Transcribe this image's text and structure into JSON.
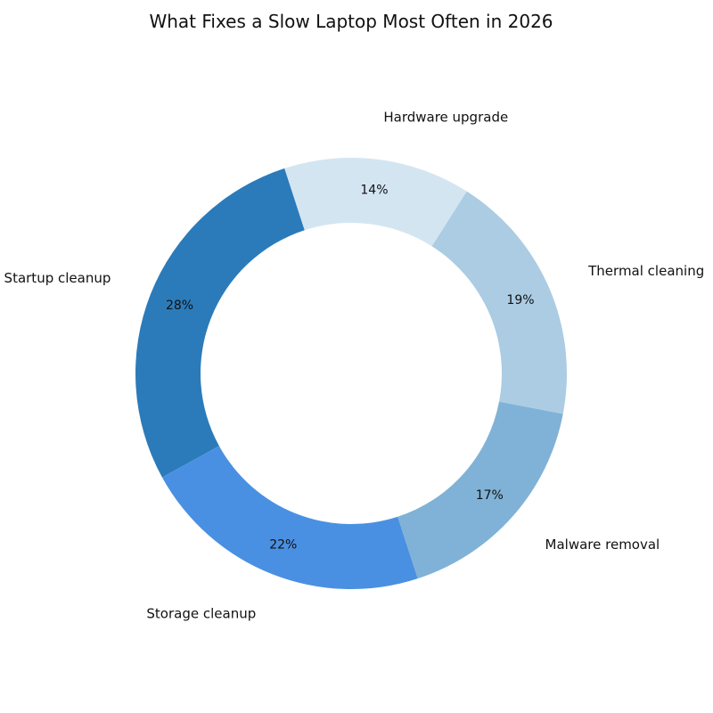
{
  "chart_data": {
    "type": "pie",
    "variant": "donut",
    "title": "What Fixes a Slow Laptop Most Often in 2026",
    "categories": [
      "Startup cleanup",
      "Storage cleanup",
      "Malware removal",
      "Thermal cleaning",
      "Hardware upgrade"
    ],
    "values": [
      28,
      22,
      17,
      19,
      14
    ],
    "value_labels": [
      "28%",
      "22%",
      "17%",
      "19%",
      "14%"
    ],
    "colors": [
      "#2b7bba",
      "#4a90e2",
      "#7fb2d6",
      "#abcce3",
      "#d4e5f2"
    ],
    "legend": "none"
  }
}
